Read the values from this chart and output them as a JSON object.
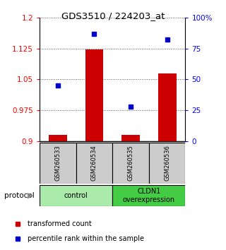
{
  "title": "GDS3510 / 224203_at",
  "samples": [
    "GSM260533",
    "GSM260534",
    "GSM260535",
    "GSM260536"
  ],
  "red_values": [
    0.916,
    1.122,
    0.916,
    1.065
  ],
  "blue_values": [
    45,
    87,
    28,
    82
  ],
  "ylim_left": [
    0.9,
    1.2
  ],
  "ylim_right": [
    0,
    100
  ],
  "yticks_left": [
    0.9,
    0.975,
    1.05,
    1.125,
    1.2
  ],
  "ytick_labels_left": [
    "0.9",
    "0.975",
    "1.05",
    "1.125",
    "1.2"
  ],
  "yticks_right": [
    0,
    25,
    50,
    75,
    100
  ],
  "ytick_labels_right": [
    "0",
    "25",
    "50",
    "75",
    "100%"
  ],
  "groups": [
    {
      "label": "control",
      "start": 0,
      "end": 2,
      "color": "#aaeaaa"
    },
    {
      "label": "CLDN1\noverexpression",
      "start": 2,
      "end": 4,
      "color": "#44cc44"
    }
  ],
  "protocol_label": "protocol",
  "legend_red": "transformed count",
  "legend_blue": "percentile rank within the sample",
  "bar_color": "#cc0000",
  "dot_color": "#0000cc",
  "bar_width": 0.5,
  "sample_box_color": "#cccccc"
}
